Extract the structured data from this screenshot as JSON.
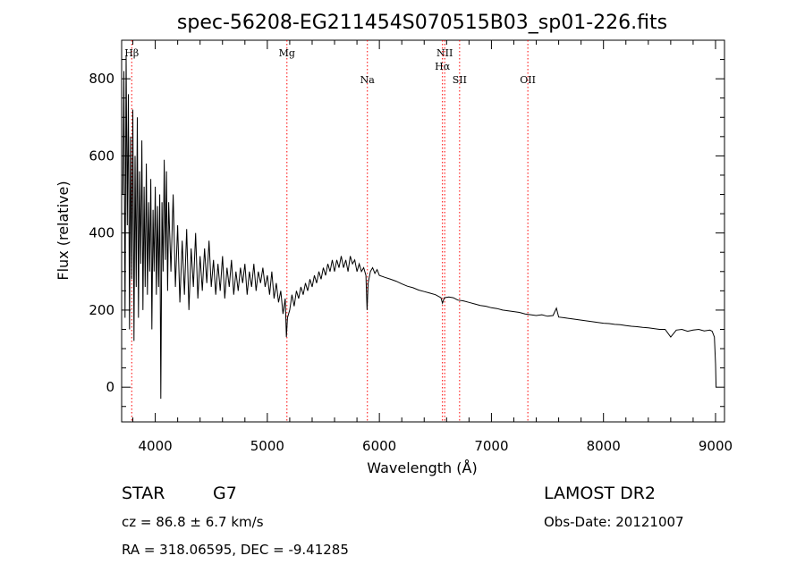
{
  "chart_data": {
    "type": "line",
    "title": "spec-56208-EG211454S070515B03_sp01-226.fits",
    "xlabel": "Wavelength (Å)",
    "ylabel": "Flux (relative)",
    "xlim": [
      3700,
      9080
    ],
    "ylim": [
      -90,
      900
    ],
    "x_ticks": [
      4000,
      5000,
      6000,
      7000,
      8000,
      9000
    ],
    "y_ticks": [
      0,
      200,
      400,
      600,
      800
    ],
    "x_tick_labels": [
      "4000",
      "5000",
      "6000",
      "7000",
      "8000",
      "9000"
    ],
    "y_tick_labels": [
      "0",
      "200",
      "400",
      "600",
      "800"
    ],
    "grid": false,
    "line_color": "#000000",
    "marker_color": "#ff0000",
    "spectral_lines": [
      {
        "label": "Hβ",
        "x": 3790,
        "label_row": 0
      },
      {
        "label": "Mg",
        "x": 5175,
        "label_row": 0
      },
      {
        "label": "Na",
        "x": 5893,
        "label_row": 1
      },
      {
        "label": "NII",
        "x": 6583,
        "label_row": 0
      },
      {
        "label": "Hα",
        "x": 6563,
        "label_row": 0.5
      },
      {
        "label": "SII",
        "x": 6716,
        "label_row": 1
      },
      {
        "label": "OII",
        "x": 7325,
        "label_row": 1
      }
    ],
    "series": [
      {
        "values": [
          [
            3710,
            500
          ],
          [
            3720,
            820
          ],
          [
            3730,
            180
          ],
          [
            3740,
            860
          ],
          [
            3750,
            420
          ],
          [
            3760,
            760
          ],
          [
            3770,
            150
          ],
          [
            3780,
            650
          ],
          [
            3790,
            280
          ],
          [
            3800,
            720
          ],
          [
            3810,
            120
          ],
          [
            3820,
            600
          ],
          [
            3830,
            260
          ],
          [
            3840,
            700
          ],
          [
            3850,
            180
          ],
          [
            3860,
            560
          ],
          [
            3870,
            320
          ],
          [
            3880,
            640
          ],
          [
            3890,
            200
          ],
          [
            3900,
            520
          ],
          [
            3910,
            260
          ],
          [
            3920,
            580
          ],
          [
            3930,
            240
          ],
          [
            3940,
            480
          ],
          [
            3950,
            300
          ],
          [
            3960,
            540
          ],
          [
            3970,
            150
          ],
          [
            3980,
            460
          ],
          [
            3990,
            300
          ],
          [
            4000,
            520
          ],
          [
            4010,
            240
          ],
          [
            4020,
            470
          ],
          [
            4030,
            260
          ],
          [
            4040,
            500
          ],
          [
            4050,
            -30
          ],
          [
            4060,
            480
          ],
          [
            4070,
            300
          ],
          [
            4080,
            590
          ],
          [
            4090,
            330
          ],
          [
            4100,
            560
          ],
          [
            4110,
            250
          ],
          [
            4120,
            480
          ],
          [
            4140,
            300
          ],
          [
            4160,
            500
          ],
          [
            4180,
            260
          ],
          [
            4200,
            420
          ],
          [
            4220,
            220
          ],
          [
            4240,
            380
          ],
          [
            4260,
            240
          ],
          [
            4280,
            410
          ],
          [
            4300,
            200
          ],
          [
            4320,
            360
          ],
          [
            4340,
            260
          ],
          [
            4360,
            400
          ],
          [
            4380,
            230
          ],
          [
            4400,
            340
          ],
          [
            4420,
            250
          ],
          [
            4440,
            360
          ],
          [
            4460,
            270
          ],
          [
            4480,
            380
          ],
          [
            4500,
            260
          ],
          [
            4520,
            330
          ],
          [
            4540,
            240
          ],
          [
            4560,
            320
          ],
          [
            4580,
            250
          ],
          [
            4600,
            340
          ],
          [
            4620,
            230
          ],
          [
            4640,
            310
          ],
          [
            4660,
            260
          ],
          [
            4680,
            330
          ],
          [
            4700,
            240
          ],
          [
            4720,
            300
          ],
          [
            4740,
            250
          ],
          [
            4760,
            310
          ],
          [
            4780,
            270
          ],
          [
            4800,
            320
          ],
          [
            4820,
            240
          ],
          [
            4840,
            300
          ],
          [
            4860,
            260
          ],
          [
            4880,
            320
          ],
          [
            4900,
            250
          ],
          [
            4920,
            300
          ],
          [
            4940,
            270
          ],
          [
            4960,
            310
          ],
          [
            4980,
            260
          ],
          [
            5000,
            290
          ],
          [
            5020,
            240
          ],
          [
            5040,
            300
          ],
          [
            5060,
            230
          ],
          [
            5080,
            270
          ],
          [
            5100,
            220
          ],
          [
            5120,
            250
          ],
          [
            5140,
            190
          ],
          [
            5160,
            230
          ],
          [
            5170,
            130
          ],
          [
            5180,
            180
          ],
          [
            5200,
            200
          ],
          [
            5220,
            240
          ],
          [
            5240,
            210
          ],
          [
            5260,
            250
          ],
          [
            5280,
            230
          ],
          [
            5300,
            260
          ],
          [
            5320,
            240
          ],
          [
            5340,
            270
          ],
          [
            5360,
            250
          ],
          [
            5380,
            280
          ],
          [
            5400,
            260
          ],
          [
            5420,
            290
          ],
          [
            5440,
            270
          ],
          [
            5460,
            300
          ],
          [
            5480,
            280
          ],
          [
            5500,
            310
          ],
          [
            5520,
            290
          ],
          [
            5540,
            320
          ],
          [
            5560,
            300
          ],
          [
            5580,
            330
          ],
          [
            5600,
            300
          ],
          [
            5620,
            330
          ],
          [
            5640,
            310
          ],
          [
            5660,
            340
          ],
          [
            5680,
            310
          ],
          [
            5700,
            330
          ],
          [
            5720,
            300
          ],
          [
            5740,
            340
          ],
          [
            5760,
            320
          ],
          [
            5780,
            330
          ],
          [
            5800,
            300
          ],
          [
            5820,
            320
          ],
          [
            5840,
            300
          ],
          [
            5860,
            310
          ],
          [
            5880,
            290
          ],
          [
            5890,
            200
          ],
          [
            5900,
            270
          ],
          [
            5920,
            300
          ],
          [
            5940,
            310
          ],
          [
            5960,
            295
          ],
          [
            5980,
            305
          ],
          [
            6000,
            290
          ],
          [
            6050,
            285
          ],
          [
            6100,
            280
          ],
          [
            6150,
            275
          ],
          [
            6200,
            268
          ],
          [
            6250,
            262
          ],
          [
            6300,
            258
          ],
          [
            6350,
            252
          ],
          [
            6400,
            248
          ],
          [
            6450,
            244
          ],
          [
            6500,
            240
          ],
          [
            6550,
            232
          ],
          [
            6563,
            218
          ],
          [
            6580,
            232
          ],
          [
            6620,
            234
          ],
          [
            6660,
            232
          ],
          [
            6700,
            226
          ],
          [
            6750,
            224
          ],
          [
            6800,
            220
          ],
          [
            6850,
            216
          ],
          [
            6900,
            212
          ],
          [
            6950,
            210
          ],
          [
            7000,
            206
          ],
          [
            7050,
            204
          ],
          [
            7100,
            200
          ],
          [
            7150,
            198
          ],
          [
            7200,
            196
          ],
          [
            7250,
            194
          ],
          [
            7300,
            190
          ],
          [
            7350,
            188
          ],
          [
            7400,
            186
          ],
          [
            7450,
            188
          ],
          [
            7500,
            184
          ],
          [
            7550,
            186
          ],
          [
            7580,
            205
          ],
          [
            7600,
            182
          ],
          [
            7650,
            180
          ],
          [
            7700,
            178
          ],
          [
            7750,
            176
          ],
          [
            7800,
            174
          ],
          [
            7850,
            172
          ],
          [
            7900,
            170
          ],
          [
            7950,
            168
          ],
          [
            8000,
            166
          ],
          [
            8050,
            165
          ],
          [
            8100,
            163
          ],
          [
            8150,
            162
          ],
          [
            8200,
            160
          ],
          [
            8250,
            158
          ],
          [
            8300,
            157
          ],
          [
            8350,
            155
          ],
          [
            8400,
            154
          ],
          [
            8450,
            152
          ],
          [
            8500,
            150
          ],
          [
            8550,
            150
          ],
          [
            8600,
            130
          ],
          [
            8650,
            148
          ],
          [
            8700,
            150
          ],
          [
            8750,
            145
          ],
          [
            8800,
            148
          ],
          [
            8850,
            150
          ],
          [
            8900,
            146
          ],
          [
            8950,
            148
          ],
          [
            8970,
            145
          ],
          [
            8990,
            130
          ],
          [
            9000,
            60
          ],
          [
            9005,
            0
          ]
        ]
      }
    ]
  },
  "info": {
    "object_type": "STAR",
    "subclass": "G7",
    "survey": "LAMOST DR2",
    "cz": "cz = 86.8 ± 6.7 km/s",
    "obs_date": "Obs-Date: 20121007",
    "coords": "RA = 318.06595, DEC =  -9.41285"
  }
}
